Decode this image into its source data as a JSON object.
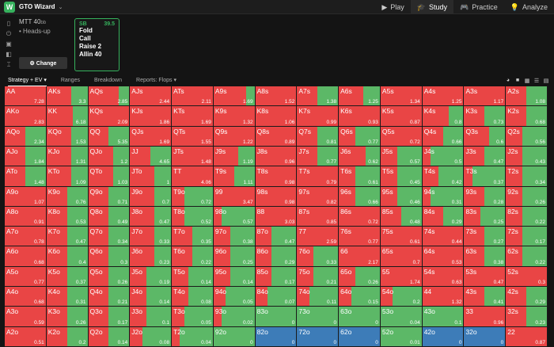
{
  "app": {
    "name": "GTO Wizard"
  },
  "nav": [
    {
      "label": "Play",
      "icon": "play-icon",
      "active": false
    },
    {
      "label": "Study",
      "icon": "study-icon",
      "active": true
    },
    {
      "label": "Practice",
      "icon": "controller-icon",
      "active": false
    },
    {
      "label": "Analyze",
      "icon": "bulb-icon",
      "active": false
    }
  ],
  "info": {
    "format": "MTT",
    "stack": "40",
    "stack_unit": "bb",
    "mode": "• Heads-up",
    "change_label": "⚙ Change"
  },
  "action": {
    "position": "SB",
    "stack": "39.5",
    "options": [
      "Fold",
      "Call",
      "Raise 2",
      "Allin 40"
    ]
  },
  "tabs": [
    "Strategy + EV ▾",
    "Ranges",
    "Breakdown",
    "Reports: Flops ▾"
  ],
  "colors": {
    "fold": "#e94545",
    "call": "#5cb867",
    "check": "#3d7cb8",
    "accent": "#36b25d"
  },
  "chart_data": {
    "type": "heatmap",
    "rows": [
      "A",
      "K",
      "Q",
      "J",
      "T",
      "9",
      "8",
      "7",
      "6",
      "5",
      "4",
      "3",
      "2"
    ],
    "cells": [
      [
        [
          "AA",
          7.28,
          0
        ],
        [
          "AKs",
          3.3,
          0.4
        ],
        [
          "AQs",
          2.85,
          0.25
        ],
        [
          "AJs",
          2.44,
          0
        ],
        [
          "ATs",
          2.11,
          0
        ],
        [
          "A9s",
          1.69,
          0.2
        ],
        [
          "A8s",
          1.52,
          0
        ],
        [
          "A7s",
          1.38,
          0.5
        ],
        [
          "A6s",
          1.25,
          0.4
        ],
        [
          "A5s",
          1.34,
          0
        ],
        [
          "A4s",
          1.25,
          0
        ],
        [
          "A3s",
          1.17,
          0
        ],
        [
          "A2s",
          1.08,
          0.5
        ]
      ],
      [
        [
          "AKo",
          2.83,
          0
        ],
        [
          "KK",
          6.18,
          0.35
        ],
        [
          "KQs",
          2.09,
          0
        ],
        [
          "KJs",
          1.86,
          0
        ],
        [
          "KTs",
          1.69,
          0
        ],
        [
          "K9s",
          1.32,
          0
        ],
        [
          "K8s",
          1.06,
          0
        ],
        [
          "K7s",
          0.99,
          0
        ],
        [
          "K6s",
          0.93,
          0
        ],
        [
          "K5s",
          0.87,
          0
        ],
        [
          "K4s",
          0.8,
          0.35
        ],
        [
          "K3s",
          0.73,
          0.5
        ],
        [
          "K2s",
          0.68,
          0.5
        ]
      ],
      [
        [
          "AQo",
          2.34,
          0.5
        ],
        [
          "KQo",
          1.53,
          0.4
        ],
        [
          "QQ",
          5.35,
          0.5
        ],
        [
          "QJs",
          1.69,
          0
        ],
        [
          "QTs",
          1.55,
          0
        ],
        [
          "Q9s",
          1.22,
          0
        ],
        [
          "Q8s",
          0.89,
          0
        ],
        [
          "Q7s",
          0.81,
          0.5
        ],
        [
          "Q6s",
          0.77,
          0.6
        ],
        [
          "Q5s",
          0.72,
          0
        ],
        [
          "Q4s",
          0.66,
          0.5
        ],
        [
          "Q3s",
          0.6,
          0.4
        ],
        [
          "Q2s",
          0.56,
          0.6
        ]
      ],
      [
        [
          "AJo",
          1.84,
          0.5
        ],
        [
          "KJo",
          1.31,
          0.4
        ],
        [
          "QJo",
          1.2,
          0.4
        ],
        [
          "JJ",
          4.65,
          0.5
        ],
        [
          "JTs",
          1.48,
          0
        ],
        [
          "J9s",
          1.19,
          0.4
        ],
        [
          "J8s",
          0.96,
          0
        ],
        [
          "J7s",
          0.77,
          0.5
        ],
        [
          "J6s",
          0.62,
          0.35
        ],
        [
          "J5s",
          0.57,
          0.6
        ],
        [
          "J4s",
          0.5,
          0.8
        ],
        [
          "J3s",
          0.47,
          0.5
        ],
        [
          "J2s",
          0.43,
          0.6
        ]
      ],
      [
        [
          "ATo",
          1.48,
          0.5
        ],
        [
          "KTo",
          1.09,
          0.4
        ],
        [
          "QTo",
          1.03,
          0.4
        ],
        [
          "JTo",
          1,
          0.4
        ],
        [
          "TT",
          4.06,
          0
        ],
        [
          "T9s",
          1.11,
          0.5
        ],
        [
          "T8s",
          0.98,
          0
        ],
        [
          "T7s",
          0.79,
          0
        ],
        [
          "T6s",
          0.61,
          0.6
        ],
        [
          "T5s",
          0.45,
          0.6
        ],
        [
          "T4s",
          0.42,
          0.6
        ],
        [
          "T3s",
          0.37,
          0.8
        ],
        [
          "T2s",
          0.34,
          0.6
        ]
      ],
      [
        [
          "A9o",
          1.07,
          0
        ],
        [
          "K9o",
          0.76,
          0.5
        ],
        [
          "Q9o",
          0.71,
          0.5
        ],
        [
          "J9o",
          0.7,
          0.4
        ],
        [
          "T9o",
          0.72,
          0.7
        ],
        [
          "99",
          3.47,
          0
        ],
        [
          "98s",
          0.98,
          0
        ],
        [
          "97s",
          0.82,
          0
        ],
        [
          "96s",
          0.66,
          0.6
        ],
        [
          "95s",
          0.46,
          0.6
        ],
        [
          "94s",
          0.31,
          0.8
        ],
        [
          "93s",
          0.28,
          0.5
        ],
        [
          "92s",
          0.26,
          0.6
        ]
      ],
      [
        [
          "A8o",
          0.91,
          0
        ],
        [
          "K8o",
          0.53,
          0.5
        ],
        [
          "Q8o",
          0.49,
          0.5
        ],
        [
          "J8o",
          0.47,
          0.4
        ],
        [
          "T8o",
          0.52,
          0.7
        ],
        [
          "98o",
          0.57,
          0.8
        ],
        [
          "88",
          3.03,
          0
        ],
        [
          "87s",
          0.85,
          0
        ],
        [
          "86s",
          0.72,
          0
        ],
        [
          "85s",
          0.48,
          0.5
        ],
        [
          "84s",
          0.29,
          0.5
        ],
        [
          "83s",
          0.25,
          0.6
        ],
        [
          "82s",
          0.22,
          0.6
        ]
      ],
      [
        [
          "A7o",
          0.78,
          0
        ],
        [
          "K7o",
          0.47,
          0.5
        ],
        [
          "Q7o",
          0.34,
          0.5
        ],
        [
          "J7o",
          0.33,
          0.4
        ],
        [
          "T7o",
          0.35,
          0.5
        ],
        [
          "97o",
          0.38,
          0.6
        ],
        [
          "87o",
          0.47,
          0.6
        ],
        [
          "77",
          2.59,
          0
        ],
        [
          "76s",
          0.77,
          0
        ],
        [
          "75s",
          0.61,
          0
        ],
        [
          "74s",
          0.44,
          0
        ],
        [
          "73s",
          0.27,
          0.5
        ],
        [
          "72s",
          0.17,
          0.6
        ]
      ],
      [
        [
          "A6o",
          0.68,
          0
        ],
        [
          "K6o",
          0.4,
          0.5
        ],
        [
          "Q6o",
          0.3,
          0.5
        ],
        [
          "J6o",
          0.23,
          0.4
        ],
        [
          "T6o",
          0.22,
          0.5
        ],
        [
          "96o",
          0.25,
          0.6
        ],
        [
          "86o",
          0.29,
          0.6
        ],
        [
          "76o",
          0.33,
          0.6
        ],
        [
          "66",
          2.17,
          0
        ],
        [
          "65s",
          0.7,
          0
        ],
        [
          "64s",
          0.53,
          0
        ],
        [
          "63s",
          0.38,
          0.5
        ],
        [
          "62s",
          0.22,
          0.6
        ]
      ],
      [
        [
          "A5o",
          0.77,
          0
        ],
        [
          "K5o",
          0.37,
          0.5
        ],
        [
          "Q5o",
          0.26,
          0.5
        ],
        [
          "J5o",
          0.19,
          0.6
        ],
        [
          "T5o",
          0.14,
          0.6
        ],
        [
          "95o",
          0.14,
          0.6
        ],
        [
          "85o",
          0.17,
          0.6
        ],
        [
          "75o",
          0.21,
          0.6
        ],
        [
          "65o",
          0.26,
          0.6
        ],
        [
          "55",
          1.74,
          0
        ],
        [
          "54s",
          0.63,
          0
        ],
        [
          "53s",
          0.47,
          0
        ],
        [
          "52s",
          0.3,
          0
        ]
      ],
      [
        [
          "A4o",
          0.68,
          0
        ],
        [
          "K4o",
          0.31,
          0.5
        ],
        [
          "Q4o",
          0.21,
          0.5
        ],
        [
          "J4o",
          0.14,
          0.6
        ],
        [
          "T4o",
          0.08,
          0.6
        ],
        [
          "94o",
          0.05,
          0.7
        ],
        [
          "84o",
          0.07,
          0.7
        ],
        [
          "74o",
          0.11,
          0.7
        ],
        [
          "64o",
          0.15,
          0.7
        ],
        [
          "54o",
          0.2,
          0.7
        ],
        [
          "44",
          1.32,
          0
        ],
        [
          "43s",
          0.41,
          0.5
        ],
        [
          "42s",
          0.29,
          0.5
        ]
      ],
      [
        [
          "A3o",
          0.59,
          0
        ],
        [
          "K3o",
          0.26,
          0.5
        ],
        [
          "Q3o",
          0.17,
          0.5
        ],
        [
          "J3o",
          0.1,
          0.6
        ],
        [
          "T3o",
          0.05,
          0.7
        ],
        [
          "93o",
          0.02,
          0.8
        ],
        [
          "83o",
          0,
          1
        ],
        [
          "73o",
          0,
          1
        ],
        [
          "63o",
          0,
          1
        ],
        [
          "53o",
          0.04,
          1
        ],
        [
          "43o",
          0.1,
          1
        ],
        [
          "33",
          0.96,
          0
        ],
        [
          "32s",
          0.23,
          0.5
        ]
      ],
      [
        [
          "A2o",
          0.51,
          0
        ],
        [
          "K2o",
          0.2,
          0.5
        ],
        [
          "Q2o",
          0.14,
          0.5
        ],
        [
          "J2o",
          0.08,
          0.7
        ],
        [
          "T2o",
          0.04,
          0.8
        ],
        [
          "92o",
          0,
          1
        ],
        [
          "82o",
          0,
          2
        ],
        [
          "72o",
          0,
          2
        ],
        [
          "62o",
          0,
          2
        ],
        [
          "52o",
          0.01,
          1
        ],
        [
          "42o",
          0,
          2
        ],
        [
          "32o",
          0,
          2
        ],
        [
          "22",
          0.87,
          0
        ]
      ]
    ]
  }
}
